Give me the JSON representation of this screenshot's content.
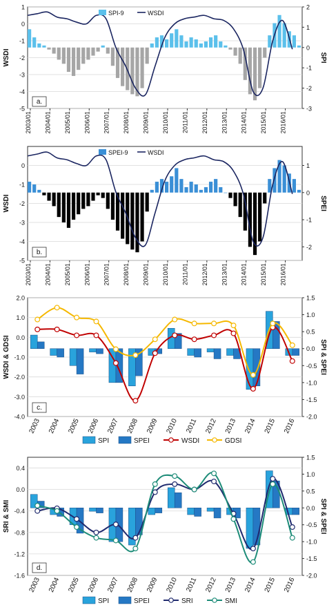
{
  "colors": {
    "spi_light": "#5bc0eb",
    "spei_mid": "#3a8fd6",
    "spi_c": "#29a3dc",
    "spei_c": "#2578c4",
    "wsdi_line": "#1a2560",
    "neg_gray": "#a6a6a6",
    "neg_black": "#000000",
    "wsdi_red": "#c00000",
    "gdsi_yellow": "#f5b800",
    "sri_navy": "#1f2a6e",
    "smi_green": "#1d8c78",
    "grid": "#d9d9d9"
  },
  "chart_data": [
    {
      "type": "bar",
      "panel_label": "a.",
      "ylabel_left": "WSDI",
      "ylabel_right": "SPI",
      "left_ticks": [
        "1",
        "0",
        "-1",
        "-2",
        "-3",
        "-4",
        "-5"
      ],
      "right_ticks": [
        "2",
        "1",
        "0",
        "-1",
        "-2",
        "-3"
      ],
      "ylim_left": [
        -5,
        1
      ],
      "ylim_right": [
        -3,
        2
      ],
      "x_ticks": [
        "2003/01",
        "2004/01",
        "2005/01",
        "2006/01",
        "2007/01",
        "2008/01",
        "2009/01",
        "2010/01",
        "2011/01",
        "2012/01",
        "2013/01",
        "2014/01",
        "2015/01",
        "2016/01"
      ],
      "legend": [
        "SPI-9",
        "WSDI"
      ],
      "series": [
        {
          "name": "SPI-9",
          "kind": "bar",
          "x": [
            "2003-01",
            "2003-04",
            "2003-07",
            "2003-10",
            "2004-01",
            "2004-04",
            "2004-07",
            "2004-10",
            "2005-01",
            "2005-04",
            "2005-07",
            "2005-10",
            "2006-01",
            "2006-04",
            "2006-07",
            "2006-10",
            "2007-01",
            "2007-04",
            "2007-07",
            "2007-10",
            "2008-01",
            "2008-04",
            "2008-07",
            "2008-10",
            "2009-01",
            "2009-04",
            "2009-07",
            "2009-10",
            "2010-01",
            "2010-04",
            "2010-07",
            "2010-10",
            "2011-01",
            "2011-04",
            "2011-07",
            "2011-10",
            "2012-01",
            "2012-04",
            "2012-07",
            "2012-10",
            "2013-01",
            "2013-04",
            "2013-07",
            "2013-10",
            "2014-01",
            "2014-04",
            "2014-07",
            "2014-10",
            "2015-01",
            "2015-04",
            "2015-07",
            "2015-10",
            "2016-01",
            "2016-04",
            "2016-07",
            "2016-10"
          ],
          "values": [
            0.9,
            0.5,
            0.2,
            0.1,
            -0.1,
            -0.3,
            -0.6,
            -0.8,
            -1.2,
            -1.4,
            -1.1,
            -0.8,
            -0.6,
            -0.4,
            -0.2,
            0.1,
            -0.3,
            -0.9,
            -1.5,
            -1.9,
            -2.1,
            -2.3,
            -2.4,
            -2.0,
            -0.8,
            0.2,
            0.5,
            0.6,
            0.4,
            0.7,
            0.9,
            0.6,
            0.3,
            0.5,
            0.4,
            0.2,
            0.3,
            0.5,
            0.6,
            0.3,
            0.1,
            -0.1,
            -0.4,
            -0.8,
            -1.6,
            -2.3,
            -2.6,
            -2.0,
            -0.5,
            0.6,
            1.2,
            1.6,
            1.2,
            0.8,
            0.6,
            0.1
          ]
        },
        {
          "name": "WSDI",
          "kind": "line",
          "x": [
            "2003-01",
            "2003-07",
            "2004-01",
            "2004-07",
            "2005-01",
            "2005-07",
            "2006-01",
            "2006-07",
            "2007-01",
            "2007-07",
            "2008-01",
            "2008-07",
            "2009-01",
            "2009-07",
            "2010-01",
            "2010-07",
            "2011-01",
            "2011-07",
            "2012-01",
            "2012-07",
            "2013-01",
            "2013-07",
            "2014-01",
            "2014-07",
            "2015-01",
            "2015-07",
            "2016-01",
            "2016-07"
          ],
          "values": [
            0.5,
            0.6,
            0.7,
            0.4,
            0.3,
            0.1,
            0.0,
            0.5,
            0.3,
            -1.4,
            -2.5,
            -3.8,
            -4.2,
            -2.5,
            -0.8,
            0.0,
            0.3,
            0.4,
            0.5,
            0.3,
            0.2,
            -0.3,
            -1.5,
            -4.0,
            -3.8,
            -1.0,
            0.2,
            -1.5
          ]
        }
      ]
    },
    {
      "type": "bar",
      "panel_label": "b.",
      "ylabel_left": "WSDI",
      "ylabel_right": "SPEI",
      "left_ticks": [
        "0",
        "-1",
        "-2",
        "-3",
        "-4",
        "-5"
      ],
      "right_ticks": [
        "1",
        "0",
        "-1",
        "-2"
      ],
      "ylim_left": [
        -5,
        1
      ],
      "ylim_right": [
        -2.5,
        1.7
      ],
      "x_ticks": [
        "2003/01",
        "2004/01",
        "2005/01",
        "2006/01",
        "2007/01",
        "2008/01",
        "2009/01",
        "2010/01",
        "2011/01",
        "2012/01",
        "2013/01",
        "2014/01",
        "2015/01",
        "2016/01"
      ],
      "legend": [
        "SPEI-9",
        "WSDI"
      ],
      "series": [
        {
          "name": "SPEI-9",
          "kind": "bar",
          "x": [
            "2003-01",
            "2003-04",
            "2003-07",
            "2003-10",
            "2004-01",
            "2004-04",
            "2004-07",
            "2004-10",
            "2005-01",
            "2005-04",
            "2005-07",
            "2005-10",
            "2006-01",
            "2006-04",
            "2006-07",
            "2006-10",
            "2007-01",
            "2007-04",
            "2007-07",
            "2007-10",
            "2008-01",
            "2008-04",
            "2008-07",
            "2008-10",
            "2009-01",
            "2009-04",
            "2009-07",
            "2009-10",
            "2010-01",
            "2010-04",
            "2010-07",
            "2010-10",
            "2011-01",
            "2011-04",
            "2011-07",
            "2011-10",
            "2012-01",
            "2012-04",
            "2012-07",
            "2012-10",
            "2013-01",
            "2013-04",
            "2013-07",
            "2013-10",
            "2014-01",
            "2014-04",
            "2014-07",
            "2014-10",
            "2015-01",
            "2015-04",
            "2015-07",
            "2015-10",
            "2016-01",
            "2016-04",
            "2016-07",
            "2016-10"
          ],
          "values": [
            0.4,
            0.3,
            0.1,
            -0.1,
            -0.3,
            -0.5,
            -0.9,
            -1.1,
            -1.3,
            -1.0,
            -0.8,
            -0.6,
            -0.5,
            -0.3,
            -0.1,
            -0.2,
            -0.6,
            -1.0,
            -1.4,
            -1.7,
            -1.9,
            -2.1,
            -2.2,
            -1.8,
            -0.7,
            0.1,
            0.4,
            0.5,
            0.4,
            0.6,
            0.9,
            0.5,
            0.2,
            0.4,
            0.3,
            0.1,
            0.2,
            0.4,
            0.5,
            0.2,
            0.0,
            -0.2,
            -0.5,
            -0.9,
            -1.4,
            -2.0,
            -2.3,
            -1.8,
            -0.4,
            0.5,
            0.9,
            1.2,
            1.0,
            0.7,
            0.5,
            0.1
          ]
        },
        {
          "name": "WSDI",
          "kind": "line",
          "x": [
            "2003-01",
            "2003-07",
            "2004-01",
            "2004-07",
            "2005-01",
            "2005-07",
            "2006-01",
            "2006-07",
            "2007-01",
            "2007-07",
            "2008-01",
            "2008-07",
            "2009-01",
            "2009-07",
            "2010-01",
            "2010-07",
            "2011-01",
            "2011-07",
            "2012-01",
            "2012-07",
            "2013-01",
            "2013-07",
            "2014-01",
            "2014-07",
            "2015-01",
            "2015-07",
            "2016-01",
            "2016-07"
          ],
          "values": [
            0.5,
            0.6,
            0.7,
            0.4,
            0.3,
            0.1,
            0.0,
            0.5,
            0.3,
            -1.4,
            -2.5,
            -3.8,
            -4.2,
            -2.5,
            -0.8,
            0.0,
            0.3,
            0.4,
            0.5,
            0.3,
            0.2,
            -0.3,
            -1.5,
            -4.0,
            -3.8,
            -1.0,
            0.2,
            -1.5
          ]
        }
      ]
    },
    {
      "type": "bar",
      "panel_label": "c.",
      "ylabel_left": "WSDI & GDSI",
      "ylabel_right": "SPI & SPEI",
      "left_ticks": [
        "2.0",
        "1.0",
        "0.0",
        "-1.0",
        "-2.0",
        "-3.0",
        "-4.0"
      ],
      "right_ticks": [
        "1.5",
        "1.0",
        "0.5",
        "0.0",
        "-0.5",
        "-1.0",
        "-1.5",
        "-2.0"
      ],
      "ylim_left": [
        -4.0,
        2.0
      ],
      "ylim_right": [
        -2.0,
        1.5
      ],
      "categories": [
        "2003",
        "2004",
        "2005",
        "2006",
        "2007",
        "2008",
        "2009",
        "2010",
        "2011",
        "2012",
        "2013",
        "2014",
        "2015",
        "2016"
      ],
      "legend": [
        "SPI",
        "SPEI",
        "WSDI",
        "GDSI"
      ],
      "series": [
        {
          "name": "SPI",
          "kind": "bar",
          "values": [
            0.4,
            -0.2,
            -0.5,
            -0.1,
            -1.0,
            -1.1,
            -0.2,
            0.6,
            -0.2,
            -0.1,
            -0.2,
            -1.2,
            1.1,
            -0.2
          ]
        },
        {
          "name": "SPEI",
          "kind": "bar",
          "values": [
            0.2,
            -0.25,
            -0.75,
            -0.15,
            -1.0,
            -0.8,
            -0.15,
            0.45,
            -0.25,
            -0.3,
            -0.3,
            -1.1,
            0.8,
            -0.2
          ]
        },
        {
          "name": "WSDI",
          "kind": "line",
          "values": [
            0.4,
            0.4,
            0.1,
            0.1,
            -1.3,
            -3.2,
            -0.8,
            0.1,
            -0.1,
            0.1,
            0.2,
            -2.6,
            0.5,
            -1.2
          ]
        },
        {
          "name": "GDSI",
          "kind": "line",
          "values": [
            0.9,
            1.5,
            1.0,
            0.8,
            -0.6,
            -0.9,
            -0.1,
            0.9,
            0.7,
            0.7,
            0.6,
            -1.9,
            0.7,
            -0.4
          ]
        }
      ]
    },
    {
      "type": "bar",
      "panel_label": "d.",
      "ylabel_left": "SRI & SMI",
      "ylabel_right": "SPI & SPEI",
      "left_ticks": [
        "0.4",
        "0.0",
        "-0.4",
        "-0.8",
        "-1.2",
        "-1.6"
      ],
      "right_ticks": [
        "1.5",
        "1.0",
        "0.5",
        "0.0",
        "-0.5",
        "-1.0",
        "-1.5",
        "-2.0"
      ],
      "ylim_left": [
        -1.6,
        0.6
      ],
      "ylim_right": [
        -2.0,
        1.5
      ],
      "categories": [
        "2003",
        "2004",
        "2005",
        "2006",
        "2007",
        "2008",
        "2009",
        "2010",
        "2011",
        "2012",
        "2013",
        "2014",
        "2015",
        "2016"
      ],
      "legend": [
        "SPI",
        "SPEI",
        "SRI",
        "SMI"
      ],
      "series": [
        {
          "name": "SPI",
          "kind": "bar",
          "values": [
            0.4,
            -0.2,
            -0.5,
            -0.1,
            -1.0,
            -1.1,
            -0.2,
            0.6,
            -0.2,
            -0.1,
            -0.2,
            -1.2,
            1.1,
            -0.2
          ]
        },
        {
          "name": "SPEI",
          "kind": "bar",
          "values": [
            0.2,
            -0.25,
            -0.75,
            -0.15,
            -1.0,
            -0.8,
            -0.15,
            0.45,
            -0.25,
            -0.3,
            -0.3,
            -1.1,
            0.8,
            -0.2
          ]
        },
        {
          "name": "SRI",
          "kind": "line",
          "values": [
            -0.4,
            -0.35,
            -0.55,
            -0.8,
            -0.65,
            -0.9,
            -0.05,
            0.1,
            0.0,
            0.15,
            -0.45,
            -1.1,
            0.2,
            -0.7
          ]
        },
        {
          "name": "SMI",
          "kind": "line",
          "values": [
            -0.3,
            -0.4,
            -0.7,
            -0.9,
            -0.95,
            -1.1,
            0.1,
            0.25,
            0.0,
            0.3,
            -0.55,
            -1.35,
            0.1,
            -0.9
          ]
        }
      ]
    }
  ]
}
